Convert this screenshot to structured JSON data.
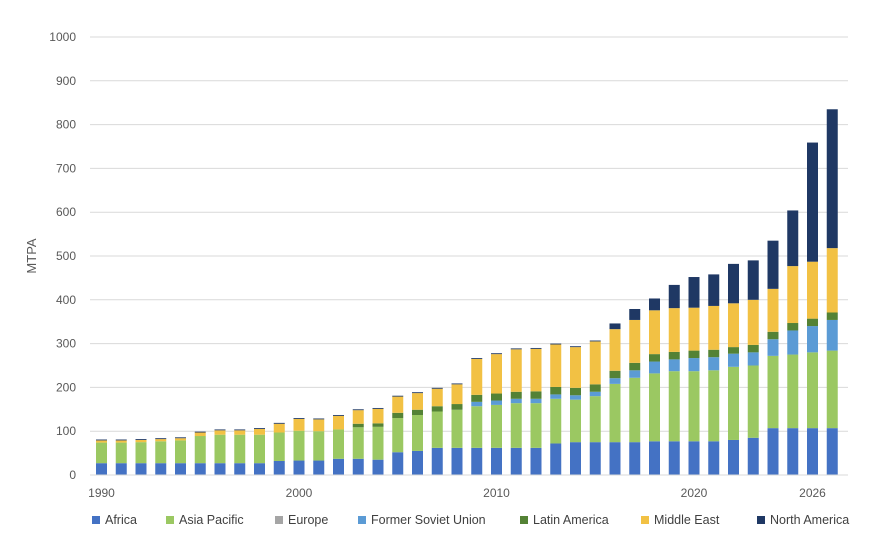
{
  "chart_data": {
    "type": "bar",
    "stacked": true,
    "ylabel": "MTPA",
    "ylim": [
      0,
      1000
    ],
    "yticks": [
      0,
      100,
      200,
      300,
      400,
      500,
      600,
      700,
      800,
      900,
      1000
    ],
    "grid": true,
    "legend_position": "bottom",
    "x": [
      1990,
      1991,
      1992,
      1993,
      1994,
      1995,
      1996,
      1997,
      1998,
      1999,
      2000,
      2001,
      2002,
      2003,
      2004,
      2005,
      2006,
      2007,
      2008,
      2009,
      2010,
      2011,
      2012,
      2013,
      2014,
      2015,
      2016,
      2017,
      2018,
      2019,
      2020,
      2021,
      2022,
      2023,
      2024,
      2025,
      2026,
      2027
    ],
    "xtick_labels": [
      "1990",
      "2000",
      "2010",
      "2020",
      "2026"
    ],
    "series": [
      {
        "name": "Africa",
        "color": "#4472C4",
        "values": [
          27,
          27,
          27,
          27,
          27,
          27,
          27,
          27,
          27,
          32,
          33,
          33,
          37,
          37,
          35,
          52,
          55,
          62,
          62,
          62,
          62,
          62,
          62,
          72,
          75,
          75,
          75,
          75,
          77,
          77,
          77,
          77,
          80,
          85,
          107,
          107,
          107,
          107
        ]
      },
      {
        "name": "Asia Pacific",
        "color": "#9BC862",
        "values": [
          47,
          47,
          48,
          50,
          52,
          62,
          65,
          65,
          65,
          65,
          68,
          67,
          67,
          72,
          75,
          78,
          82,
          83,
          87,
          95,
          98,
          102,
          102,
          102,
          97,
          105,
          133,
          147,
          155,
          160,
          160,
          162,
          167,
          165,
          165,
          168,
          173,
          177
        ]
      },
      {
        "name": "Europe",
        "color": "#A5A5A5",
        "values": [
          0,
          0,
          0,
          0,
          0,
          0,
          0,
          0,
          0,
          0,
          0,
          0,
          0,
          0,
          0,
          0,
          0,
          0,
          0,
          0,
          0,
          0,
          0,
          0,
          0,
          0,
          0,
          0,
          0,
          0,
          0,
          0,
          0,
          0,
          0,
          0,
          0,
          0
        ]
      },
      {
        "name": "Former Soviet Union",
        "color": "#5B9BD5",
        "values": [
          0,
          0,
          0,
          0,
          0,
          0,
          0,
          0,
          0,
          0,
          0,
          0,
          0,
          0,
          0,
          0,
          0,
          0,
          0,
          10,
          10,
          10,
          10,
          10,
          10,
          10,
          13,
          17,
          27,
          27,
          30,
          30,
          30,
          30,
          38,
          55,
          60,
          70
        ]
      },
      {
        "name": "Latin America",
        "color": "#548235",
        "values": [
          0,
          0,
          0,
          0,
          0,
          0,
          0,
          0,
          0,
          0,
          0,
          0,
          0,
          8,
          8,
          12,
          12,
          12,
          13,
          16,
          16,
          16,
          17,
          17,
          17,
          17,
          17,
          17,
          17,
          17,
          17,
          17,
          15,
          17,
          17,
          17,
          17,
          17
        ]
      },
      {
        "name": "Middle East",
        "color": "#F2C144",
        "values": [
          5,
          5,
          5,
          5,
          5,
          8,
          10,
          10,
          13,
          20,
          27,
          27,
          31,
          31,
          33,
          37,
          38,
          40,
          45,
          82,
          90,
          97,
          97,
          97,
          93,
          98,
          95,
          98,
          100,
          100,
          98,
          100,
          100,
          103,
          98,
          130,
          130,
          147
        ]
      },
      {
        "name": "North America",
        "color": "#1F3864",
        "values": [
          2,
          2,
          2,
          2,
          2,
          2,
          2,
          2,
          2,
          2,
          2,
          2,
          2,
          2,
          2,
          2,
          2,
          2,
          2,
          2,
          2,
          2,
          2,
          2,
          2,
          2,
          13,
          25,
          27,
          53,
          70,
          72,
          90,
          90,
          110,
          127,
          272,
          317
        ]
      }
    ]
  }
}
